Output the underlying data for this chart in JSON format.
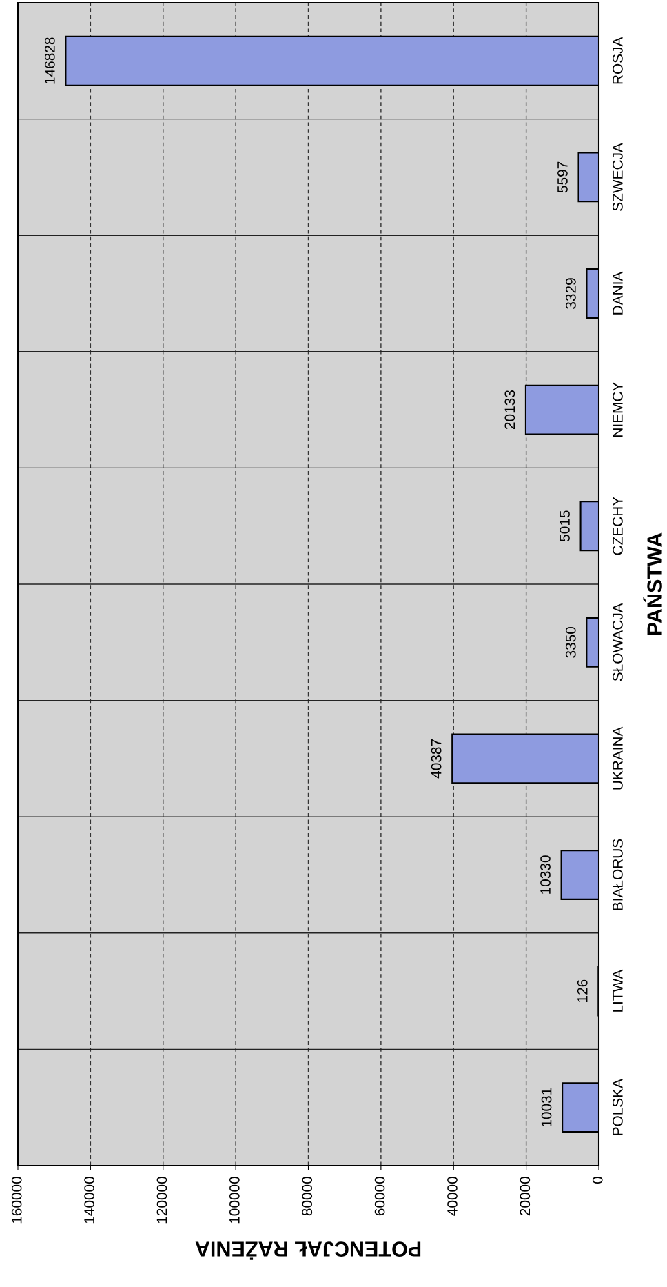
{
  "chart_data": {
    "type": "bar",
    "orientation": "horizontal",
    "xlabel": "POTENCJAŁ RAŻENIA",
    "ylabel": "PAŃSTWA",
    "categories": [
      "ROSJA",
      "SZWECJA",
      "DANIA",
      "NIEMCY",
      "CZECHY",
      "SŁOWACJA",
      "UKRAINA",
      "BIAŁORUS",
      "LITWA",
      "POLSKA"
    ],
    "values": [
      146828,
      5597,
      3329,
      20133,
      5015,
      3350,
      40387,
      10330,
      126,
      10031
    ],
    "color": "#8e9be0",
    "xlim": [
      160000,
      0
    ],
    "xticks": [
      0,
      20000,
      40000,
      60000,
      80000,
      100000,
      120000,
      140000,
      160000
    ],
    "grid": true,
    "data_labels": true
  }
}
